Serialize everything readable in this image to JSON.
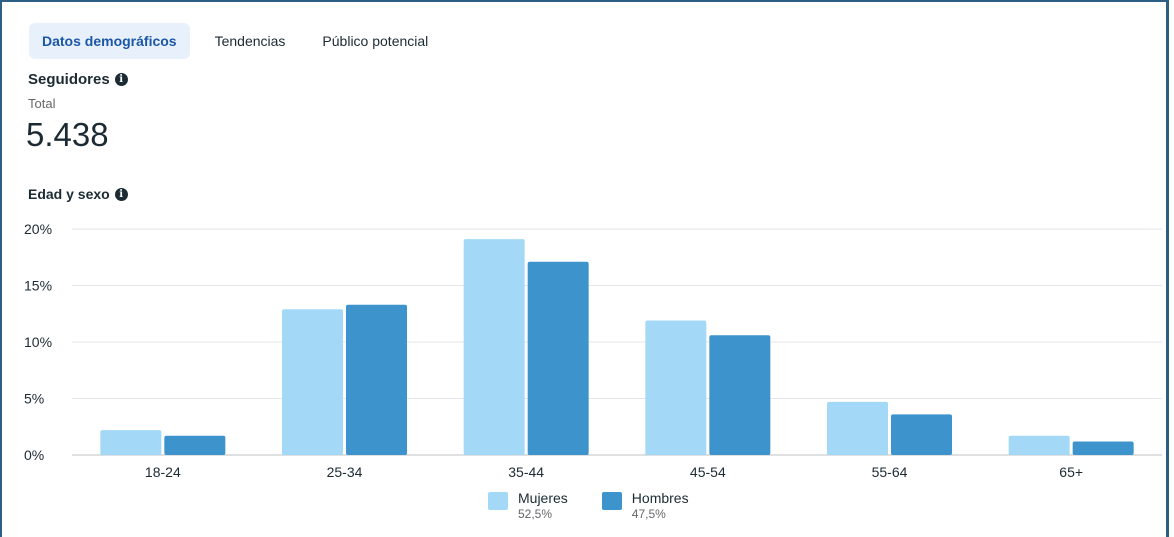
{
  "tabs": [
    {
      "label": "Datos demográficos",
      "active": true
    },
    {
      "label": "Tendencias",
      "active": false
    },
    {
      "label": "Público potencial",
      "active": false
    }
  ],
  "followers": {
    "title": "Seguidores",
    "total_label": "Total",
    "total_value": "5.438"
  },
  "age_gender": {
    "title": "Edad y sexo"
  },
  "legend": [
    {
      "name": "Mujeres",
      "percent": "52,5%",
      "color": "#a3d9f7"
    },
    {
      "name": "Hombres",
      "percent": "47,5%",
      "color": "#3d93cb"
    }
  ],
  "chart_data": {
    "type": "bar",
    "categories": [
      "18-24",
      "25-34",
      "35-44",
      "45-54",
      "55-64",
      "65+"
    ],
    "series": [
      {
        "name": "Mujeres",
        "values": [
          2.2,
          12.9,
          19.1,
          11.9,
          4.7,
          1.7
        ]
      },
      {
        "name": "Hombres",
        "values": [
          1.7,
          13.3,
          17.1,
          10.6,
          3.6,
          1.2
        ]
      }
    ],
    "yticks": [
      "0%",
      "5%",
      "10%",
      "15%",
      "20%"
    ],
    "ylim": [
      0,
      20
    ],
    "grid": true,
    "legend_position": "bottom"
  }
}
